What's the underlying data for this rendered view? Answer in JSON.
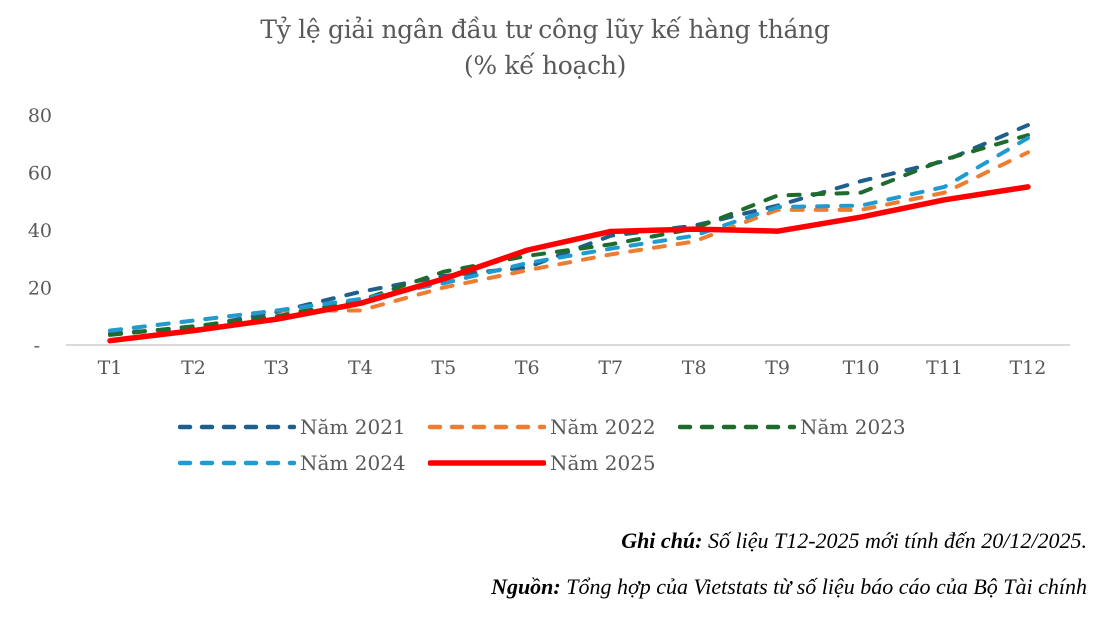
{
  "chart_data": {
    "type": "line",
    "title": "Tỷ lệ giải ngân đầu tư công lũy kế hàng tháng",
    "subtitle": "(% kế hoạch)",
    "xlabel": "",
    "ylabel": "",
    "categories": [
      "T1",
      "T2",
      "T3",
      "T4",
      "T5",
      "T6",
      "T7",
      "T8",
      "T9",
      "T10",
      "T11",
      "T12"
    ],
    "ylim": [
      0,
      80
    ],
    "yticks": [
      0,
      20,
      40,
      60,
      80
    ],
    "ytick_labels": [
      "-",
      "20",
      "40",
      "60",
      "80"
    ],
    "grid": false,
    "legend_position": "bottom",
    "series": [
      {
        "name": "Năm 2021",
        "color": "#1F5F8B",
        "style": "dashed",
        "values": [
          4.0,
          6.0,
          11.5,
          18.5,
          24.0,
          27.0,
          38.0,
          41.5,
          48.5,
          57.0,
          64.0,
          76.5
        ]
      },
      {
        "name": "Năm 2022",
        "color": "#ED7D31",
        "style": "dashed",
        "values": [
          5.0,
          8.5,
          12.0,
          12.0,
          20.0,
          26.0,
          31.5,
          36.0,
          47.0,
          47.0,
          53.0,
          67.0
        ]
      },
      {
        "name": "Năm 2023",
        "color": "#1E6B2E",
        "style": "dashed",
        "values": [
          3.5,
          6.5,
          10.0,
          15.5,
          25.5,
          31.0,
          35.0,
          40.5,
          52.0,
          53.0,
          64.5,
          73.0
        ]
      },
      {
        "name": "Năm 2024",
        "color": "#1F9BD1",
        "style": "dashed",
        "values": [
          5.0,
          8.5,
          12.0,
          16.0,
          21.5,
          28.5,
          33.5,
          38.0,
          48.0,
          48.5,
          55.0,
          72.0
        ]
      },
      {
        "name": "Năm 2025",
        "color": "#FF0000",
        "style": "solid",
        "values": [
          1.5,
          5.0,
          9.0,
          14.5,
          23.0,
          33.0,
          39.5,
          40.3,
          39.6,
          44.5,
          50.5,
          55.0
        ]
      }
    ]
  },
  "notes": {
    "note_label": "Ghi chú:",
    "note_text": " Số liệu T12-2025 mới tính đến 20/12/2025.",
    "source_label": "Nguồn:",
    "source_text": " Tổng hợp của Vietstats từ số liệu báo cáo của Bộ Tài chính"
  }
}
